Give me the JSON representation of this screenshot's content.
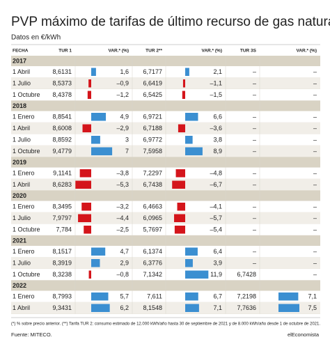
{
  "title": "PVP máximo de tarifas de último recurso de gas natural",
  "subtitle": "Datos en €/kWh",
  "colors": {
    "positive": "#3b8fd1",
    "negative": "#d4151b"
  },
  "table": {
    "headers": [
      "FECHA",
      "TUR 1",
      "VAR.* (%)",
      "TUR 2**",
      "VAR.* (%)",
      "TUR 3S",
      "VAR.* (%)"
    ],
    "groups": [
      {
        "year": "2017",
        "rows": [
          {
            "date": "1 Abril",
            "cells": [
              "8,6131",
              {
                "value": 1.6,
                "label": "1,6"
              },
              "6,7177",
              {
                "value": 2.1,
                "label": "2,1"
              },
              "–",
              "–"
            ]
          },
          {
            "date": "1 Julio",
            "cells": [
              "8,5373",
              {
                "value": -0.9,
                "label": "–0,9"
              },
              "6,6419",
              {
                "value": -1.1,
                "label": "–1,1"
              },
              "–",
              "–"
            ]
          },
          {
            "date": "1 Octubre",
            "cells": [
              "8,4378",
              {
                "value": -1.2,
                "label": "–1,2"
              },
              "6,5425",
              {
                "value": -1.5,
                "label": "–1,5"
              },
              "–",
              "–"
            ]
          }
        ]
      },
      {
        "year": "2018",
        "rows": [
          {
            "date": "1 Enero",
            "cells": [
              "8,8541",
              {
                "value": 4.9,
                "label": "4,9"
              },
              "6,9721",
              {
                "value": 6.6,
                "label": "6,6"
              },
              "–",
              "–"
            ]
          },
          {
            "date": "1 Abril",
            "cells": [
              "8,6008",
              {
                "value": -2.9,
                "label": "–2,9"
              },
              "6,7188",
              {
                "value": -3.6,
                "label": "–3,6"
              },
              "–",
              "–"
            ]
          },
          {
            "date": "1 Julio",
            "cells": [
              "8,8592",
              {
                "value": 3,
                "label": "3"
              },
              "6,9772",
              {
                "value": 3.8,
                "label": "3,8"
              },
              "–",
              "–"
            ]
          },
          {
            "date": "1 Octubre",
            "cells": [
              "9,4779",
              {
                "value": 7,
                "label": "7"
              },
              "7,5958",
              {
                "value": 8.9,
                "label": "8,9"
              },
              "–",
              "–"
            ]
          }
        ]
      },
      {
        "year": "2019",
        "rows": [
          {
            "date": "1 Enero",
            "cells": [
              "9,1141",
              {
                "value": -3.8,
                "label": "–3,8"
              },
              "7,2297",
              {
                "value": -4.8,
                "label": "–4,8"
              },
              "–",
              "–"
            ]
          },
          {
            "date": "1 Abril",
            "cells": [
              "8,6283",
              {
                "value": -5.3,
                "label": "–5,3"
              },
              "6,7438",
              {
                "value": -6.7,
                "label": "–6,7"
              },
              "–",
              "–"
            ]
          }
        ]
      },
      {
        "year": "2020",
        "rows": [
          {
            "date": "1 Enero",
            "cells": [
              "8,3495",
              {
                "value": -3.2,
                "label": "–3,2"
              },
              "6,4663",
              {
                "value": -4.1,
                "label": "–4,1"
              },
              "–",
              "–"
            ]
          },
          {
            "date": "1 Julio",
            "cells": [
              "7,9797",
              {
                "value": -4.4,
                "label": "–4,4"
              },
              "6,0965",
              {
                "value": -5.7,
                "label": "–5,7"
              },
              "–",
              "–"
            ]
          },
          {
            "date": "1 Octubre",
            "cells": [
              "7,784",
              {
                "value": -2.5,
                "label": "–2,5"
              },
              "5,7697",
              {
                "value": -5.4,
                "label": "–5,4"
              },
              "–",
              "–"
            ]
          }
        ]
      },
      {
        "year": "2021",
        "rows": [
          {
            "date": "1 Enero",
            "cells": [
              "8,1517",
              {
                "value": 4.7,
                "label": "4,7"
              },
              "6,1374",
              {
                "value": 6.4,
                "label": "6,4"
              },
              "–",
              "–"
            ]
          },
          {
            "date": "1 Julio",
            "cells": [
              "8,3919",
              {
                "value": 2.9,
                "label": "2,9"
              },
              "6,3776",
              {
                "value": 3.9,
                "label": "3,9"
              },
              "–",
              "–"
            ]
          },
          {
            "date": "1 Octubre",
            "cells": [
              "8,3238",
              {
                "value": -0.8,
                "label": "–0,8"
              },
              "7,1342",
              {
                "value": 11.9,
                "label": "11,9"
              },
              "6,7428",
              "–"
            ]
          }
        ]
      },
      {
        "year": "2022",
        "rows": [
          {
            "date": "1 Enero",
            "cells": [
              "8,7993",
              {
                "value": 5.7,
                "label": "5,7"
              },
              "7,611",
              {
                "value": 6.7,
                "label": "6,7"
              },
              "7,2198",
              {
                "value": 7.1,
                "label": "7,1"
              }
            ]
          },
          {
            "date": "1 Abril",
            "cells": [
              "9,3431",
              {
                "value": 6.2,
                "label": "6,2"
              },
              "8,1548",
              {
                "value": 7.1,
                "label": "7,1"
              },
              "7,7636",
              {
                "value": 7.5,
                "label": "7,5"
              }
            ]
          }
        ]
      }
    ]
  },
  "footnote": "(*) % sobre precio anterior. (**) Tarifa TUR 2: consumo estimado de 12.000 kWh/año hasta 30 de septiembre de 2021 y de 8.000 kWh/año desde 1 de octubre de 2021.",
  "source": "Fuente: MITECO.",
  "brand": "elEconomista"
}
